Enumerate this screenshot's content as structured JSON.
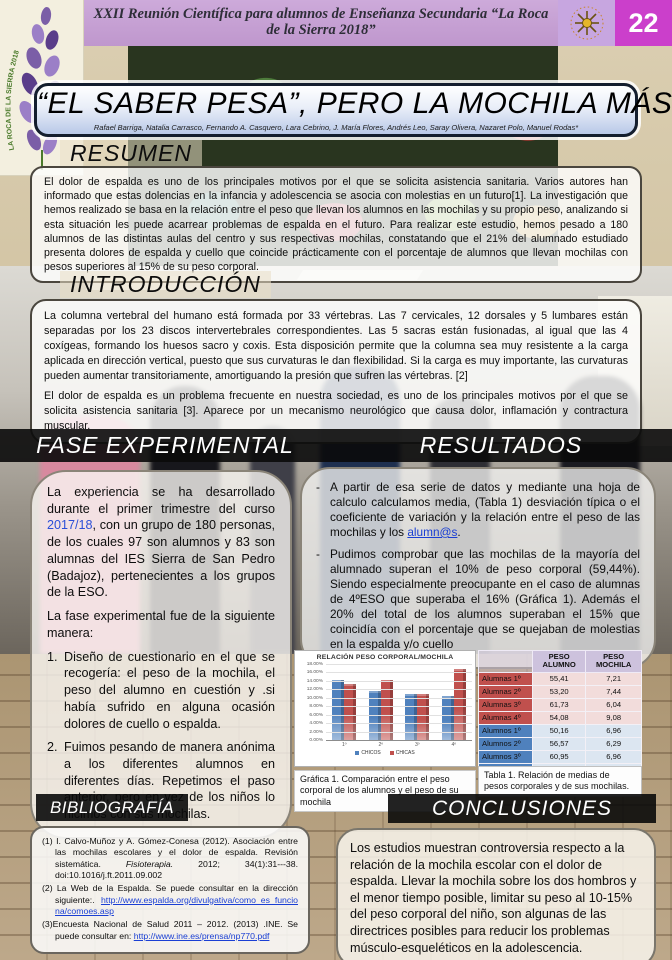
{
  "colors": {
    "header_band": "#c5a0d2",
    "number_bg": "#cb3fcb",
    "chicos_blue": "#4f81bd",
    "chicas_red": "#c0504d",
    "link_blue": "#1a3fd4"
  },
  "header": {
    "event_title": "XXII Reunión Científica para alumnos de Enseñanza Secundaria “La Roca de la Sierra  2018”",
    "poster_number": "22",
    "logo_text": "LA ROCA DE LA SIERRA 2018"
  },
  "title_box": {
    "title": "“EL SABER PESA”, PERO LA MOCHILA MÁS",
    "authors": "Rafael Barriga, Natalia Carrasco, Fernando A. Casquero, Lara Cebrino, J. María Flores, Andrés Leo, Saray Olivera, Nazaret Polo, Manuel Rodas*"
  },
  "resumen": {
    "heading": "RESUMEN",
    "body": "El dolor de espalda es uno de los principales motivos por el que se solicita asistencia sanitaria. Varios autores han informado que estas dolencias en la infancia y adolescencia se asocia con molestias en un futuro[1]. La investigación que hemos realizado se basa en la relación entre el peso que llevan los alumnos en las mochilas y su propio peso, analizando si esta situación les puede acarrear problemas de espalda en el futuro. Para realizar este estudio, hemos pesado a 180 alumnos de las distintas aulas del centro y sus respectivas mochilas, constatando que el 21% del alumnado estudiado presenta dolores de espalda y cuello que coincide prácticamente con el porcentaje de alumnos que llevan mochilas con pesos superiores al 15% de su peso corporal."
  },
  "introduccion": {
    "heading": "INTRODUCCIÓN",
    "para1": "La columna vertebral del humano está formada por 33 vértebras. Las 7 cervicales, 12 dorsales y 5 lumbares están separadas por los 23 discos intervertebrales correspondientes. Las 5 sacras están fusionadas, al igual que las 4 coxígeas, formando los huesos sacro y coxis. Esta disposición permite que la columna sea muy resistente a la carga aplicada en dirección vertical, puesto que sus curvaturas le dan flexibilidad. Si la carga es muy importante, las curvaturas pueden aumentar transitoriamente, amortiguando la presión que sufren las vértebras. [2]",
    "para2": "El dolor de espalda es un problema frecuente en nuestra sociedad, es uno de los principales motivos por el que se solicita asistencia sanitaria [3]. Aparece por un mecanismo neurológico que causa dolor, inflamación y contractura muscular."
  },
  "fase_experimental": {
    "heading": "FASE EXPERIMENTAL",
    "para1_pre": "La experiencia se ha desarrollado durante el primer trimestre del curso ",
    "para1_year": "2017/18",
    "para1_post": ", con un grupo de 180 personas, de los cuales 97 son alumnos y 83 son alumnas del IES Sierra de San Pedro (Badajoz), pertenecientes a los grupos de la ESO.",
    "para2": "La fase experimental fue de la siguiente manera:",
    "item1_num": "1.",
    "item1": "Diseño de cuestionario en el que se recogería: el peso de la mochila, el peso del alumno en cuestión y .si había sufrido en alguna ocasión dolores de cuello o espalda.",
    "item2_num": "2.",
    "item2": "Fuimos pesando de manera anónima a los diferentes alumnos en diferentes días. Repetimos el paso anterior, pero en vez de los niños lo hicimos con sus mochilas."
  },
  "resultados": {
    "heading": "RESULTADOS",
    "bullet": "-",
    "item1_pre": "A partir de esa serie de datos y mediante una hoja de calculo calculamos media, (Tabla 1) desviación típica o el coeficiente de variación y la relación entre el peso de las mochilas y los ",
    "item1_link": "alumn@s",
    "item1_post": ".",
    "item2": "Pudimos comprobar que las mochilas de la mayoría del alumnado superan el 10% de peso corporal (59,44%). Siendo especialmente preocupante en el caso de alumnas de 4ºESO que superaba el 16% (Gráfica 1). Además el 20% del total de los alumnos superaban el 15% que coincidía con el porcentaje que se quejaban de molestias en la espalda y/o cuello"
  },
  "chart_data": {
    "type": "bar",
    "title": "RELACIÓN PESO CORPORAL/MOCHILA",
    "categories": [
      "1º",
      "2º",
      "3º",
      "4º"
    ],
    "series": [
      {
        "name": "CHICOS",
        "color": "#4f81bd",
        "values": [
          14.3,
          11.5,
          11.0,
          10.4
        ]
      },
      {
        "name": "CHICAS",
        "color": "#c0504d",
        "values": [
          13.2,
          14.2,
          11.0,
          16.8
        ]
      }
    ],
    "ylabel": "",
    "xlabel": "",
    "ylim": [
      0,
      18
    ],
    "ytick_step": 2,
    "ytick_suffix": "%",
    "grid": true,
    "legend_position": "bottom"
  },
  "grafica_caption": "Gráfica 1. Comparación entre el peso corporal de los alumnos y el peso de su mochila",
  "tabla": {
    "col_headers": [
      "",
      "PESO ALUMNO",
      "PESO MOCHILA"
    ],
    "rows": [
      {
        "label": "Alumnas 1º",
        "peso_alumno": "55,41",
        "peso_mochila": "7,21",
        "group": "alumnas"
      },
      {
        "label": "Alumnas 2º",
        "peso_alumno": "53,20",
        "peso_mochila": "7,44",
        "group": "alumnas"
      },
      {
        "label": "Alumnas 3º",
        "peso_alumno": "61,73",
        "peso_mochila": "6,04",
        "group": "alumnas"
      },
      {
        "label": "Alumnas 4º",
        "peso_alumno": "54,08",
        "peso_mochila": "9,08",
        "group": "alumnas"
      },
      {
        "label": "Alumnos 1º",
        "peso_alumno": "50,16",
        "peso_mochila": "6,96",
        "group": "alumnos"
      },
      {
        "label": "Alumnos 2º",
        "peso_alumno": "56,57",
        "peso_mochila": "6,29",
        "group": "alumnos"
      },
      {
        "label": "Alumnos 3º",
        "peso_alumno": "60,95",
        "peso_mochila": "6,96",
        "group": "alumnos"
      },
      {
        "label": "Alumnos 4º",
        "peso_alumno": "65,99",
        "peso_mochila": "6,74",
        "group": "alumnos"
      }
    ],
    "caption": "Tabla 1. Relación de medias de pesos corporales y de sus mochilas."
  },
  "bibliografia": {
    "heading": "BIBLIOGRAFÍA",
    "ref1_pre": "(1) I. Calvo-Muñoz y A. Gómez-Conesa (2012). Asociación entre las mochilas escolares y el dolor de espalda. Revisión sistemática. ",
    "ref1_italic": "Fisioterapia.",
    "ref1_post": " 2012; 34(1):31---38. doi:10.1016/j.ft.2011.09.002",
    "ref2_pre": "(2) La Web de la Espalda. Se puede consultar en la dirección siguiente:. ",
    "ref2_link": "http://www.espalda.org/divulgativa/como_es_funciona/comoes.asp",
    "ref3_pre": "(3)Encuesta Nacional de Salud 2011 – 2012. (2013) .INE. Se puede consultar en: ",
    "ref3_link": "http://www.ine.es/prensa/np770.pdf"
  },
  "conclusiones": {
    "heading": "CONCLUSIONES",
    "body": "Los estudios muestran controversia respecto a la relación de la mochila escolar con el dolor de espalda. Llevar la mochila sobre los dos hombros y el menor tiempo posible, limitar su peso al 10-15% del peso corporal del niño, son algunas de las directrices posibles para reducir los problemas músculo-esqueléticos en la adolescencia."
  }
}
